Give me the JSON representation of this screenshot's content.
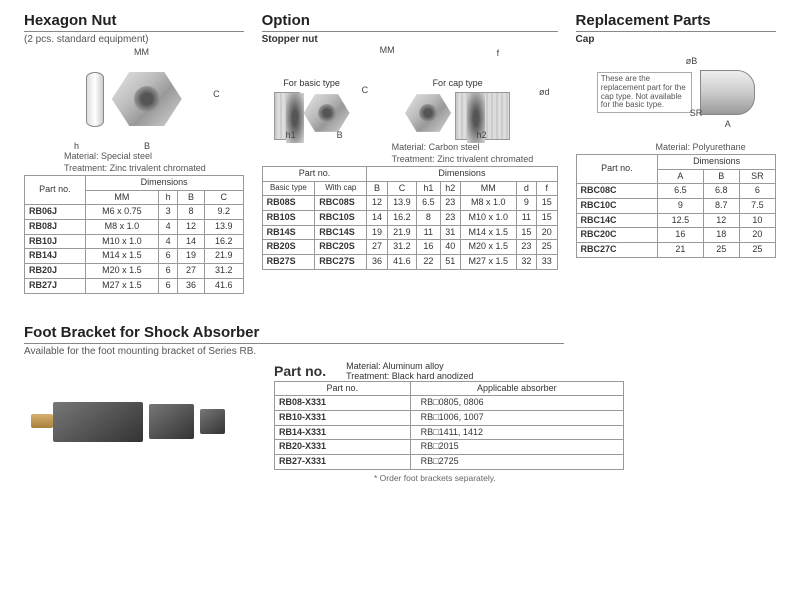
{
  "hexNut": {
    "title": "Hexagon Nut",
    "subtitle": "(2 pcs. standard equipment)",
    "diagram": {
      "mm": "MM",
      "h": "h",
      "b": "B",
      "c": "C"
    },
    "material": "Material: Special steel",
    "treatment": "Treatment: Zinc trivalent chromated",
    "headers": {
      "partno": "Part no.",
      "dimensions": "Dimensions",
      "mm": "MM",
      "h": "h",
      "b": "B",
      "c": "C"
    },
    "rows": [
      {
        "partno": "RB06J",
        "mm": "M6 x 0.75",
        "h": "3",
        "b": "8",
        "c": "9.2"
      },
      {
        "partno": "RB08J",
        "mm": "M8 x 1.0",
        "h": "4",
        "b": "12",
        "c": "13.9"
      },
      {
        "partno": "RB10J",
        "mm": "M10 x 1.0",
        "h": "4",
        "b": "14",
        "c": "16.2"
      },
      {
        "partno": "RB14J",
        "mm": "M14 x 1.5",
        "h": "6",
        "b": "19",
        "c": "21.9"
      },
      {
        "partno": "RB20J",
        "mm": "M20 x 1.5",
        "h": "6",
        "b": "27",
        "c": "31.2"
      },
      {
        "partno": "RB27J",
        "mm": "M27 x 1.5",
        "h": "6",
        "b": "36",
        "c": "41.6"
      }
    ]
  },
  "option": {
    "title": "Option",
    "subtitle": "Stopper nut",
    "diagLabels": {
      "basic": "For basic type",
      "cap": "For cap type",
      "mm": "MM",
      "b": "B",
      "c": "C",
      "h1": "h1",
      "h2": "h2",
      "d": "ød",
      "f": "f"
    },
    "material": "Material: Carbon steel",
    "treatment": "Treatment: Zinc trivalent chromated",
    "headers": {
      "partno": "Part no.",
      "basic": "Basic type",
      "withcap": "With cap",
      "dimensions": "Dimensions",
      "b": "B",
      "c": "C",
      "h1": "h1",
      "h2": "h2",
      "mm": "MM",
      "d": "d",
      "f": "f"
    },
    "rows": [
      {
        "basic": "RB08S",
        "cap": "RBC08S",
        "b": "12",
        "c": "13.9",
        "h1": "6.5",
        "h2": "23",
        "mm": "M8 x 1.0",
        "d": "9",
        "f": "15"
      },
      {
        "basic": "RB10S",
        "cap": "RBC10S",
        "b": "14",
        "c": "16.2",
        "h1": "8",
        "h2": "23",
        "mm": "M10 x 1.0",
        "d": "11",
        "f": "15"
      },
      {
        "basic": "RB14S",
        "cap": "RBC14S",
        "b": "19",
        "c": "21.9",
        "h1": "11",
        "h2": "31",
        "mm": "M14 x 1.5",
        "d": "15",
        "f": "20"
      },
      {
        "basic": "RB20S",
        "cap": "RBC20S",
        "b": "27",
        "c": "31.2",
        "h1": "16",
        "h2": "40",
        "mm": "M20 x 1.5",
        "d": "23",
        "f": "25"
      },
      {
        "basic": "RB27S",
        "cap": "RBC27S",
        "b": "36",
        "c": "41.6",
        "h1": "22",
        "h2": "51",
        "mm": "M27 x 1.5",
        "d": "32",
        "f": "33"
      }
    ]
  },
  "replacement": {
    "title": "Replacement Parts",
    "subtitle": "Cap",
    "diagLabels": {
      "b": "øB",
      "sr": "SR",
      "a": "A"
    },
    "note": "These are the replacement part for the cap type. Not available for the basic type.",
    "material": "Material: Polyurethane",
    "headers": {
      "partno": "Part no.",
      "dimensions": "Dimensions",
      "a": "A",
      "b": "B",
      "sr": "SR"
    },
    "rows": [
      {
        "partno": "RBC08C",
        "a": "6.5",
        "b": "6.8",
        "sr": "6"
      },
      {
        "partno": "RBC10C",
        "a": "9",
        "b": "8.7",
        "sr": "7.5"
      },
      {
        "partno": "RBC14C",
        "a": "12.5",
        "b": "12",
        "sr": "10"
      },
      {
        "partno": "RBC20C",
        "a": "16",
        "b": "18",
        "sr": "20"
      },
      {
        "partno": "RBC27C",
        "a": "21",
        "b": "25",
        "sr": "25"
      }
    ]
  },
  "foot": {
    "title": "Foot Bracket for Shock Absorber",
    "subtitle": "Available for the foot mounting bracket of Series RB.",
    "partnoLabel": "Part no.",
    "material": "Material: Aluminum alloy",
    "treatment": "Treatment: Black hard anodized",
    "headers": {
      "partno": "Part no.",
      "absorber": "Applicable absorber"
    },
    "rows": [
      {
        "partno": "RB08-X331",
        "absorber": "RB□0805, 0806"
      },
      {
        "partno": "RB10-X331",
        "absorber": "RB□1006, 1007"
      },
      {
        "partno": "RB14-X331",
        "absorber": "RB□1411, 1412"
      },
      {
        "partno": "RB20-X331",
        "absorber": "RB□2015"
      },
      {
        "partno": "RB27-X331",
        "absorber": "RB□2725"
      }
    ],
    "footnote": "* Order foot brackets separately."
  }
}
